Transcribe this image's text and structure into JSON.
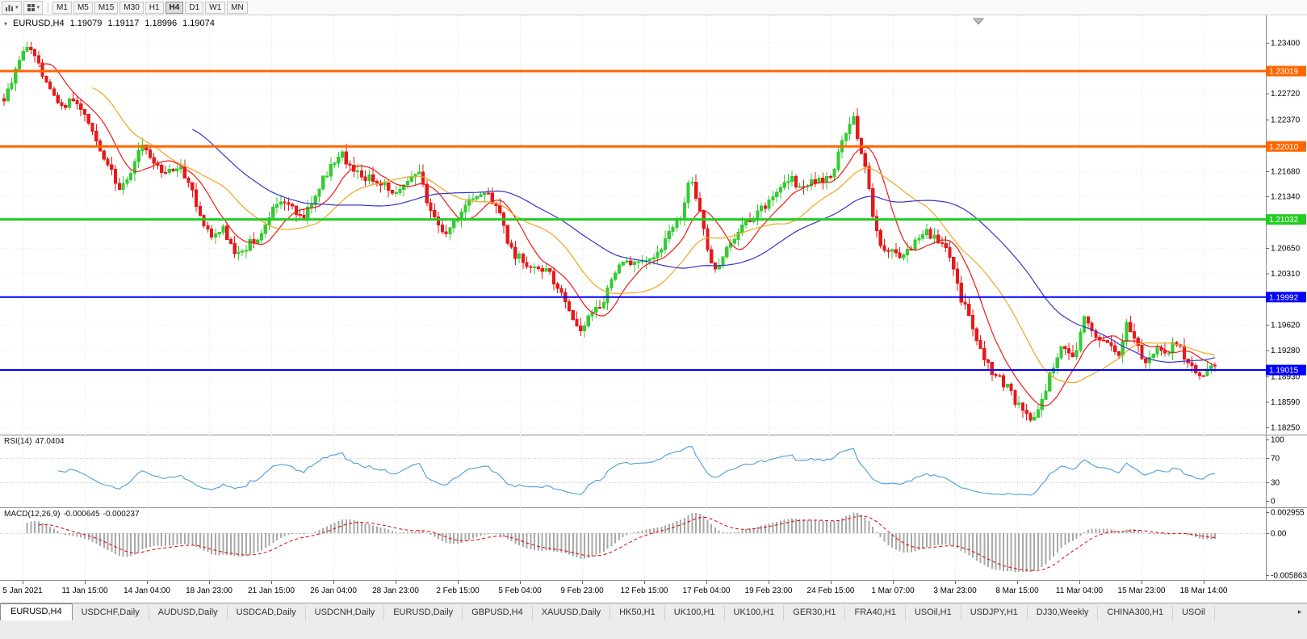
{
  "toolbar": {
    "left_buttons": [
      {
        "icon": "bar-chart-icon"
      },
      {
        "icon": "grid-icon"
      }
    ],
    "caret_icon": "▾",
    "timeframes": [
      {
        "label": "M1",
        "active": false
      },
      {
        "label": "M5",
        "active": false
      },
      {
        "label": "M15",
        "active": false
      },
      {
        "label": "M30",
        "active": false
      },
      {
        "label": "H1",
        "active": false
      },
      {
        "label": "H4",
        "active": true
      },
      {
        "label": "D1",
        "active": false
      },
      {
        "label": "W1",
        "active": false
      },
      {
        "label": "MN",
        "active": false
      }
    ]
  },
  "chart": {
    "symbol_period": "EURUSD,H4",
    "ohlc": {
      "open": "1.19079",
      "high": "1.19117",
      "low": "1.18996",
      "close": "1.19074"
    },
    "colors": {
      "up": "#33cc33",
      "down": "#e61919",
      "grid": "#e4e4e4",
      "axis": "#8c8c8c"
    },
    "y_axis": {
      "ticks": [
        {
          "value": 1.234,
          "label": "1.23400"
        },
        {
          "value": 1.2272,
          "label": "1.22720"
        },
        {
          "value": 1.2237,
          "label": "1.22370"
        },
        {
          "value": 1.2168,
          "label": "1.21680"
        },
        {
          "value": 1.2134,
          "label": "1.21340"
        },
        {
          "value": 1.2065,
          "label": "1.20650"
        },
        {
          "value": 1.2031,
          "label": "1.20310"
        },
        {
          "value": 1.1962,
          "label": "1.19620"
        },
        {
          "value": 1.1928,
          "label": "1.19280"
        },
        {
          "value": 1.1893,
          "label": "1.18930"
        },
        {
          "value": 1.1859,
          "label": "1.18590"
        },
        {
          "value": 1.1825,
          "label": "1.18250"
        }
      ]
    },
    "h_lines": [
      {
        "value": 1.23019,
        "label": "1.23019",
        "color": "#ff6600",
        "width": 3
      },
      {
        "value": 1.2201,
        "label": "1.22010",
        "color": "#ff6600",
        "width": 3
      },
      {
        "value": 1.21032,
        "label": "1.21032",
        "color": "#22cc22",
        "width": 3
      },
      {
        "value": 1.19992,
        "label": "1.19992",
        "color": "#0000ff",
        "width": 2
      },
      {
        "value": 1.19015,
        "label": "1.19015",
        "color": "#0000ff",
        "width": 2
      }
    ]
  },
  "chart_data": {
    "type": "candlestick",
    "symbol": "EURUSD",
    "timeframe": "H4",
    "last_candle": {
      "open": 1.19079,
      "high": 1.19117,
      "low": 1.18996,
      "close": 1.19074
    },
    "y_axis_range": {
      "min": 1.1815,
      "max": 1.23766
    },
    "candle_count": 316,
    "horizontal_levels": [
      1.23019,
      1.2201,
      1.21032,
      1.19992,
      1.19015
    ],
    "moving_averages": [
      {
        "name": "fast",
        "period": 10,
        "color": "#f01818"
      },
      {
        "name": "medium",
        "period": 24,
        "color": "#f2a51e"
      },
      {
        "name": "slow",
        "period": 50,
        "color": "#3535cd"
      }
    ],
    "indicators": [
      {
        "name": "RSI",
        "period": 14,
        "last_value": 47.0404
      },
      {
        "name": "MACD",
        "fast": 12,
        "slow": 26,
        "signal": 9,
        "last_main": -0.000645,
        "last_signal": -0.000237
      }
    ],
    "price_path": [
      [
        0.0,
        1.2265
      ],
      [
        0.01,
        1.2305
      ],
      [
        0.019,
        1.234
      ],
      [
        0.032,
        1.23
      ],
      [
        0.045,
        1.2252
      ],
      [
        0.058,
        1.2262
      ],
      [
        0.072,
        1.2228
      ],
      [
        0.086,
        1.2175
      ],
      [
        0.095,
        1.2142
      ],
      [
        0.106,
        1.2172
      ],
      [
        0.114,
        1.2205
      ],
      [
        0.126,
        1.2178
      ],
      [
        0.134,
        1.2162
      ],
      [
        0.145,
        1.2178
      ],
      [
        0.153,
        1.215
      ],
      [
        0.164,
        1.2098
      ],
      [
        0.172,
        1.2078
      ],
      [
        0.181,
        1.2088
      ],
      [
        0.19,
        1.2062
      ],
      [
        0.201,
        1.2068
      ],
      [
        0.21,
        1.208
      ],
      [
        0.221,
        1.2112
      ],
      [
        0.229,
        1.2132
      ],
      [
        0.24,
        1.2112
      ],
      [
        0.248,
        1.2106
      ],
      [
        0.258,
        1.2142
      ],
      [
        0.267,
        1.2165
      ],
      [
        0.278,
        1.2192
      ],
      [
        0.286,
        1.2172
      ],
      [
        0.296,
        1.2162
      ],
      [
        0.305,
        1.2156
      ],
      [
        0.316,
        1.2146
      ],
      [
        0.324,
        1.214
      ],
      [
        0.334,
        1.2156
      ],
      [
        0.343,
        1.2162
      ],
      [
        0.353,
        1.2112
      ],
      [
        0.362,
        1.2082
      ],
      [
        0.372,
        1.2102
      ],
      [
        0.381,
        1.2122
      ],
      [
        0.391,
        1.2132
      ],
      [
        0.4,
        1.2136
      ],
      [
        0.409,
        1.2116
      ],
      [
        0.418,
        1.2062
      ],
      [
        0.429,
        1.2046
      ],
      [
        0.437,
        1.2042
      ],
      [
        0.447,
        1.2038
      ],
      [
        0.457,
        1.2012
      ],
      [
        0.467,
        1.1982
      ],
      [
        0.476,
        1.1956
      ],
      [
        0.486,
        1.1976
      ],
      [
        0.495,
        1.1992
      ],
      [
        0.505,
        1.2032
      ],
      [
        0.514,
        1.2046
      ],
      [
        0.523,
        1.2042
      ],
      [
        0.533,
        1.2044
      ],
      [
        0.542,
        1.2062
      ],
      [
        0.551,
        1.2092
      ],
      [
        0.561,
        1.2112
      ],
      [
        0.566,
        1.2162
      ],
      [
        0.575,
        1.211
      ],
      [
        0.586,
        1.2032
      ],
      [
        0.595,
        1.2055
      ],
      [
        0.608,
        1.2092
      ],
      [
        0.617,
        1.2105
      ],
      [
        0.627,
        1.2118
      ],
      [
        0.636,
        1.213
      ],
      [
        0.646,
        1.2158
      ],
      [
        0.655,
        1.2152
      ],
      [
        0.665,
        1.215
      ],
      [
        0.674,
        1.2155
      ],
      [
        0.684,
        1.2168
      ],
      [
        0.694,
        1.2215
      ],
      [
        0.701,
        1.2242
      ],
      [
        0.708,
        1.2195
      ],
      [
        0.715,
        1.2135
      ],
      [
        0.722,
        1.2072
      ],
      [
        0.732,
        1.2062
      ],
      [
        0.741,
        1.2048
      ],
      [
        0.751,
        1.2072
      ],
      [
        0.76,
        1.209
      ],
      [
        0.77,
        1.2076
      ],
      [
        0.779,
        1.2062
      ],
      [
        0.789,
        1.2002
      ],
      [
        0.798,
        1.1968
      ],
      [
        0.808,
        1.1918
      ],
      [
        0.817,
        1.1896
      ],
      [
        0.827,
        1.1882
      ],
      [
        0.836,
        1.1856
      ],
      [
        0.845,
        1.1838
      ],
      [
        0.855,
        1.1848
      ],
      [
        0.865,
        1.1902
      ],
      [
        0.874,
        1.1932
      ],
      [
        0.884,
        1.1912
      ],
      [
        0.892,
        1.1972
      ],
      [
        0.902,
        1.1948
      ],
      [
        0.912,
        1.1936
      ],
      [
        0.921,
        1.1926
      ],
      [
        0.928,
        1.1965
      ],
      [
        0.936,
        1.193
      ],
      [
        0.944,
        1.1908
      ],
      [
        0.952,
        1.193
      ],
      [
        0.96,
        1.1925
      ],
      [
        0.969,
        1.1938
      ],
      [
        0.979,
        1.1906
      ],
      [
        0.989,
        1.1893
      ],
      [
        1.0,
        1.1907
      ]
    ]
  },
  "rsi": {
    "name": "RSI(14)",
    "value": "47.0404",
    "color": "#4a9fd8",
    "levels": [
      70,
      30
    ],
    "ticks": [
      {
        "v": 100,
        "label": "100"
      },
      {
        "v": 70,
        "label": "70"
      },
      {
        "v": 30,
        "label": "30"
      },
      {
        "v": 0,
        "label": "0"
      }
    ]
  },
  "macd": {
    "name": "MACD(12,26,9)",
    "value_main": "-0.000645",
    "value_signal": "-0.000237",
    "histogram_color": "#a8a8a8",
    "signal_color": "#e00000",
    "range": {
      "min": -0.005863,
      "max": 0.002955
    },
    "ticks": [
      {
        "v": 0.002955,
        "label": "0.002955"
      },
      {
        "v": 0,
        "label": "0.00"
      },
      {
        "v": -0.005863,
        "label": "-0.005863"
      }
    ]
  },
  "time_axis": {
    "labels": [
      "5 Jan 2021",
      "11 Jan 15:00",
      "14 Jan 04:00",
      "18 Jan 23:00",
      "21 Jan 15:00",
      "26 Jan 04:00",
      "28 Jan 23:00",
      "2 Feb 15:00",
      "5 Feb 04:00",
      "9 Feb 23:00",
      "12 Feb 15:00",
      "17 Feb 04:00",
      "19 Feb 23:00",
      "24 Feb 15:00",
      "1 Mar 07:00",
      "3 Mar 23:00",
      "8 Mar 15:00",
      "11 Mar 04:00",
      "15 Mar 23:00",
      "18 Mar 14:00"
    ]
  },
  "tabs": {
    "scroll_right_arrow": "▸",
    "items": [
      {
        "label": "EURUSD,H4",
        "active": true
      },
      {
        "label": "USDCHF,Daily",
        "active": false
      },
      {
        "label": "AUDUSD,Daily",
        "active": false
      },
      {
        "label": "USDCAD,Daily",
        "active": false
      },
      {
        "label": "USDCNH,Daily",
        "active": false
      },
      {
        "label": "EURUSD,Daily",
        "active": false
      },
      {
        "label": "GBPUSD,H4",
        "active": false
      },
      {
        "label": "XAUUSD,Daily",
        "active": false
      },
      {
        "label": "HK50,H1",
        "active": false
      },
      {
        "label": "UK100,H1",
        "active": false
      },
      {
        "label": "UK100,H1",
        "active": false
      },
      {
        "label": "GER30,H1",
        "active": false
      },
      {
        "label": "FRA40,H1",
        "active": false
      },
      {
        "label": "USOil,H1",
        "active": false
      },
      {
        "label": "USDJPY,H1",
        "active": false
      },
      {
        "label": "DJ30,Weekly",
        "active": false
      },
      {
        "label": "CHINA300,H1",
        "active": false
      },
      {
        "label": "USOil",
        "active": false
      }
    ]
  }
}
